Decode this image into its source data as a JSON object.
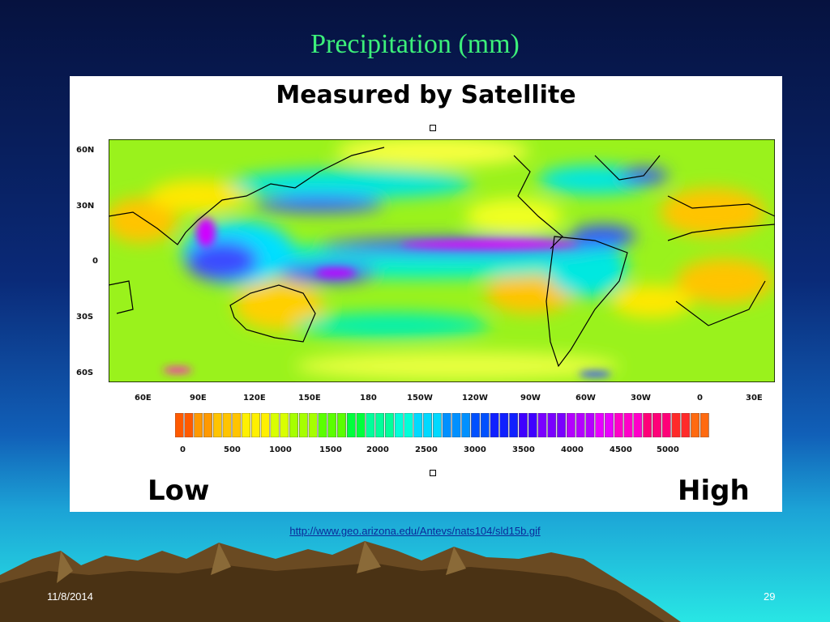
{
  "slide": {
    "title": "Precipitation (mm)",
    "source_url": "http://www.geo.arizona.edu/Antevs/nats104/sld15b.gif",
    "date": "11/8/2014",
    "page_number": "29"
  },
  "figure": {
    "title": "Measured by Satellite",
    "lat_labels": [
      "60N",
      "30N",
      "0",
      "30S",
      "60S"
    ],
    "lon_labels": [
      "60E",
      "90E",
      "120E",
      "150E",
      "180",
      "150W",
      "120W",
      "90W",
      "60W",
      "30W",
      "0",
      "30E"
    ],
    "scale_labels": [
      "0",
      "500",
      "1000",
      "1500",
      "2000",
      "2500",
      "3000",
      "3500",
      "4000",
      "4500",
      "5000"
    ],
    "low_label": "Low",
    "high_label": "High",
    "colorbar_colors": [
      "#ff5a00",
      "#ff9900",
      "#ffc400",
      "#fff000",
      "#d9ff00",
      "#a6ff00",
      "#5aff00",
      "#00ff3c",
      "#00ff9a",
      "#00ffd9",
      "#00d9ff",
      "#0090ff",
      "#0050ff",
      "#1020ff",
      "#3f00ff",
      "#7a00ff",
      "#b400ff",
      "#e800ff",
      "#ff00c8",
      "#ff0078",
      "#ff2a2a",
      "#ff6a10"
    ]
  }
}
